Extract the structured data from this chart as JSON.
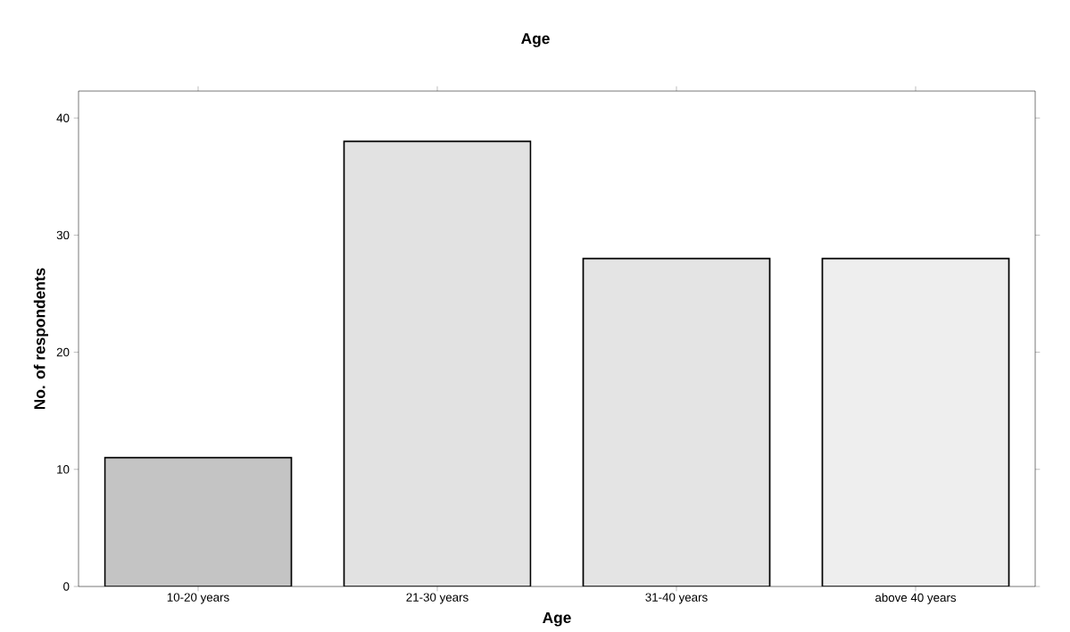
{
  "chart_data": {
    "type": "bar",
    "title": "Age",
    "xlabel": "Age",
    "ylabel": "No. of respondents",
    "categories": [
      "10-20 years",
      "21-30 years",
      "31-40 years",
      "above 40 years"
    ],
    "values": [
      11,
      38,
      28,
      28
    ],
    "colors": [
      "#c4c4c4",
      "#e2e2e2",
      "#e4e4e4",
      "#eeeeee"
    ],
    "ylim": [
      0,
      42.3
    ],
    "yticks": [
      0,
      10,
      20,
      30,
      40
    ],
    "grid": false
  }
}
